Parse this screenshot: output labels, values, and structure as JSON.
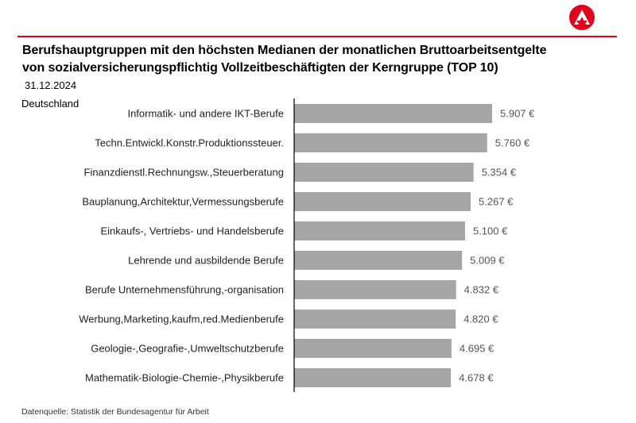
{
  "header": {
    "title_line1": "Berufshauptgruppen mit den höchsten Medianen der monatlichen Bruttoarbeitsentgelte",
    "title_line2": "von sozialversicherungspflichtig Vollzeitbeschäftigten der Kerngruppe (TOP 10)",
    "date": "31.12.2024",
    "region": "Deutschland",
    "logo_icon": "bundesagentur-logo-icon"
  },
  "footer": {
    "source": "Datenquelle: Statistik der Bundesagentur für Arbeit"
  },
  "colors": {
    "accent": "#e2001a",
    "bar": "#a6a6a6",
    "axis": "#000000"
  },
  "chart_data": {
    "type": "bar",
    "orientation": "horizontal",
    "title": "Berufshauptgruppen mit den höchsten Medianen der monatlichen Bruttoarbeitsentgelte von sozialversicherungspflichtig Vollzeitbeschäftigten der Kerngruppe (TOP 10)",
    "categories": [
      "Informatik- und andere IKT-Berufe",
      "Techn.Entwickl.Konstr.Produktionssteuer.",
      "Finanzdienstl.Rechnungsw.,Steuerberatung",
      "Bauplanung,Architektur,Vermessungsberufe",
      "Einkaufs-, Vertriebs- und Handelsberufe",
      "Lehrende und ausbildende Berufe",
      "Berufe Unternehmensführung,-organisation",
      "Werbung,Marketing,kaufm,red.Medienberufe",
      "Geologie-,Geografie-,Umweltschutzberufe",
      "Mathematik-Biologie-Chemie-,Physikberufe"
    ],
    "values": [
      5907,
      5760,
      5354,
      5267,
      5100,
      5009,
      4832,
      4820,
      4695,
      4678
    ],
    "value_labels": [
      "5.907 €",
      "5.760 €",
      "5.354 €",
      "5.267 €",
      "5.100 €",
      "5.009 €",
      "4.832 €",
      "4.820 €",
      "4.695 €",
      "4.678 €"
    ],
    "xlim": [
      0,
      7000
    ],
    "grid": false,
    "legend": "none"
  }
}
